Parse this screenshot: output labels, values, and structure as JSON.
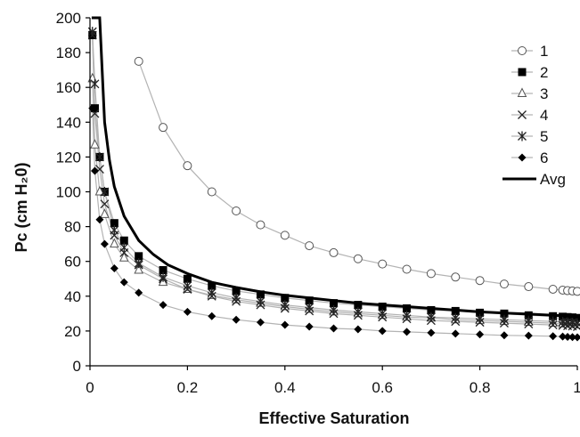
{
  "chart_data": {
    "type": "line",
    "title": "",
    "xlabel": "Effective Saturation",
    "ylabel": "Pc (cm H₂0)",
    "xlim": [
      0,
      1
    ],
    "ylim": [
      0,
      200
    ],
    "x_ticks": [
      "0",
      "0.2",
      "0.4",
      "0.6",
      "0.8",
      "1"
    ],
    "y_ticks": [
      "0",
      "20",
      "40",
      "60",
      "80",
      "100",
      "120",
      "140",
      "160",
      "180",
      "200"
    ],
    "grid": false,
    "legend_position": "right",
    "series": [
      {
        "name": "1",
        "marker": "open-circle",
        "line_color": "#b3b3b3",
        "x": [
          0.1,
          0.15,
          0.2,
          0.25,
          0.3,
          0.35,
          0.4,
          0.45,
          0.5,
          0.55,
          0.6,
          0.65,
          0.7,
          0.75,
          0.8,
          0.85,
          0.9,
          0.95,
          0.97,
          0.98,
          0.99,
          1.0
        ],
        "y": [
          175,
          137,
          115,
          100,
          89,
          81,
          75,
          69,
          65,
          61.5,
          58.5,
          55.5,
          53,
          51,
          49,
          47,
          45.5,
          44,
          43.5,
          43.2,
          43,
          42.8
        ]
      },
      {
        "name": "2",
        "marker": "filled-square",
        "line_color": "#b3b3b3",
        "x": [
          0.005,
          0.01,
          0.02,
          0.03,
          0.05,
          0.07,
          0.1,
          0.15,
          0.2,
          0.25,
          0.3,
          0.35,
          0.4,
          0.45,
          0.5,
          0.55,
          0.6,
          0.65,
          0.7,
          0.75,
          0.8,
          0.85,
          0.9,
          0.95,
          0.97,
          0.98,
          0.99,
          1.0
        ],
        "y": [
          190,
          148,
          120,
          100,
          82,
          72,
          63,
          55,
          50,
          46,
          43,
          41,
          39,
          37.5,
          36,
          35,
          34,
          33,
          32,
          31.5,
          30.5,
          30,
          29,
          28.5,
          28.2,
          28,
          27.8,
          27.5
        ]
      },
      {
        "name": "3",
        "marker": "open-triangle",
        "line_color": "#b3b3b3",
        "x": [
          0.005,
          0.01,
          0.02,
          0.03,
          0.05,
          0.07,
          0.1,
          0.15,
          0.2,
          0.25,
          0.3,
          0.35,
          0.4,
          0.45,
          0.5,
          0.55,
          0.6,
          0.65,
          0.7,
          0.75,
          0.8,
          0.85,
          0.9,
          0.95,
          0.97,
          0.98,
          0.99,
          1.0
        ],
        "y": [
          165,
          127,
          100,
          87,
          70,
          62,
          55,
          48,
          44,
          40.5,
          38,
          36,
          34,
          32.5,
          31,
          30,
          29,
          28,
          27.5,
          26.5,
          26,
          25.5,
          25,
          24.5,
          24.2,
          24,
          23.8,
          23.5
        ]
      },
      {
        "name": "4",
        "marker": "x",
        "line_color": "#b3b3b3",
        "x": [
          0.005,
          0.01,
          0.02,
          0.03,
          0.05,
          0.07,
          0.1,
          0.15,
          0.2,
          0.25,
          0.3,
          0.35,
          0.4,
          0.45,
          0.5,
          0.55,
          0.6,
          0.65,
          0.7,
          0.75,
          0.8,
          0.85,
          0.9,
          0.95,
          0.97,
          0.98,
          0.99,
          1.0
        ],
        "y": [
          190,
          145,
          113,
          93,
          75,
          65,
          58,
          50,
          44,
          40,
          37,
          35,
          33,
          31.5,
          30,
          29,
          28,
          27,
          26,
          25.5,
          25,
          24.5,
          24,
          23.5,
          23.2,
          23,
          22.8,
          22.5
        ]
      },
      {
        "name": "5",
        "marker": "star",
        "line_color": "#b3b3b3",
        "x": [
          0.005,
          0.01,
          0.02,
          0.03,
          0.05,
          0.07,
          0.1,
          0.15,
          0.2,
          0.25,
          0.3,
          0.35,
          0.4,
          0.45,
          0.5,
          0.55,
          0.6,
          0.65,
          0.7,
          0.75,
          0.8,
          0.85,
          0.9,
          0.95,
          0.97,
          0.98,
          0.99,
          1.0
        ],
        "y": [
          192,
          162,
          120,
          100,
          78,
          68,
          59,
          51,
          46,
          42,
          39,
          37,
          35,
          33.5,
          32,
          31,
          30,
          29,
          28,
          27.5,
          27,
          26.5,
          26,
          25.5,
          25.2,
          25,
          24.8,
          24.5
        ]
      },
      {
        "name": "6",
        "marker": "filled-diamond",
        "line_color": "#b3b3b3",
        "x": [
          0.005,
          0.01,
          0.02,
          0.03,
          0.05,
          0.07,
          0.1,
          0.15,
          0.2,
          0.25,
          0.3,
          0.35,
          0.4,
          0.45,
          0.5,
          0.55,
          0.6,
          0.65,
          0.7,
          0.75,
          0.8,
          0.85,
          0.9,
          0.95,
          0.97,
          0.98,
          0.99,
          1.0
        ],
        "y": [
          148,
          112,
          84,
          70,
          56,
          48,
          42,
          35,
          31,
          28.5,
          26.5,
          25,
          23.5,
          22.5,
          21.5,
          21,
          20,
          19.5,
          19,
          18.5,
          18,
          17.5,
          17.3,
          17,
          16.8,
          16.6,
          16.5,
          16.4
        ]
      },
      {
        "name": "Avg",
        "marker": "none",
        "line_color": "#000000",
        "line_width": 3,
        "x": [
          0.0035,
          0.005,
          0.0075,
          0.01,
          0.015,
          0.02,
          0.03,
          0.04,
          0.05,
          0.07,
          0.1,
          0.13,
          0.16,
          0.2,
          0.25,
          0.3,
          0.35,
          0.4,
          0.45,
          0.5,
          0.55,
          0.6,
          0.65,
          0.7,
          0.75,
          0.8,
          0.85,
          0.9,
          0.95,
          1.0
        ],
        "y": [
          200,
          200,
          200,
          200,
          200,
          200,
          140,
          118,
          103,
          86,
          72,
          64,
          58,
          53,
          48,
          45,
          42.5,
          40.5,
          39,
          37.5,
          36,
          35,
          34,
          33,
          32,
          31,
          30.3,
          29.7,
          29,
          28.5
        ]
      }
    ]
  }
}
